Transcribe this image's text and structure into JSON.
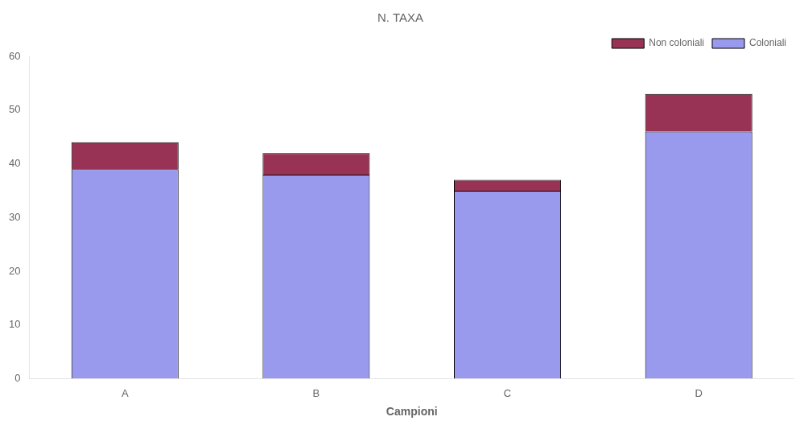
{
  "chart_data": {
    "type": "bar",
    "title": "N. TAXA",
    "xlabel": "Campioni",
    "categories": [
      "A",
      "B",
      "C",
      "D"
    ],
    "series": [
      {
        "name": "Coloniali",
        "color": "#9999ee",
        "values": [
          39,
          38,
          35,
          46
        ]
      },
      {
        "name": "Non coloniali",
        "color": "#993355",
        "values": [
          5,
          4,
          2,
          7
        ]
      }
    ],
    "stacked": true,
    "ylim": [
      0,
      60
    ],
    "yticks": [
      0,
      10,
      20,
      30,
      40,
      50,
      60
    ],
    "grid": false,
    "legend": "upper right"
  }
}
